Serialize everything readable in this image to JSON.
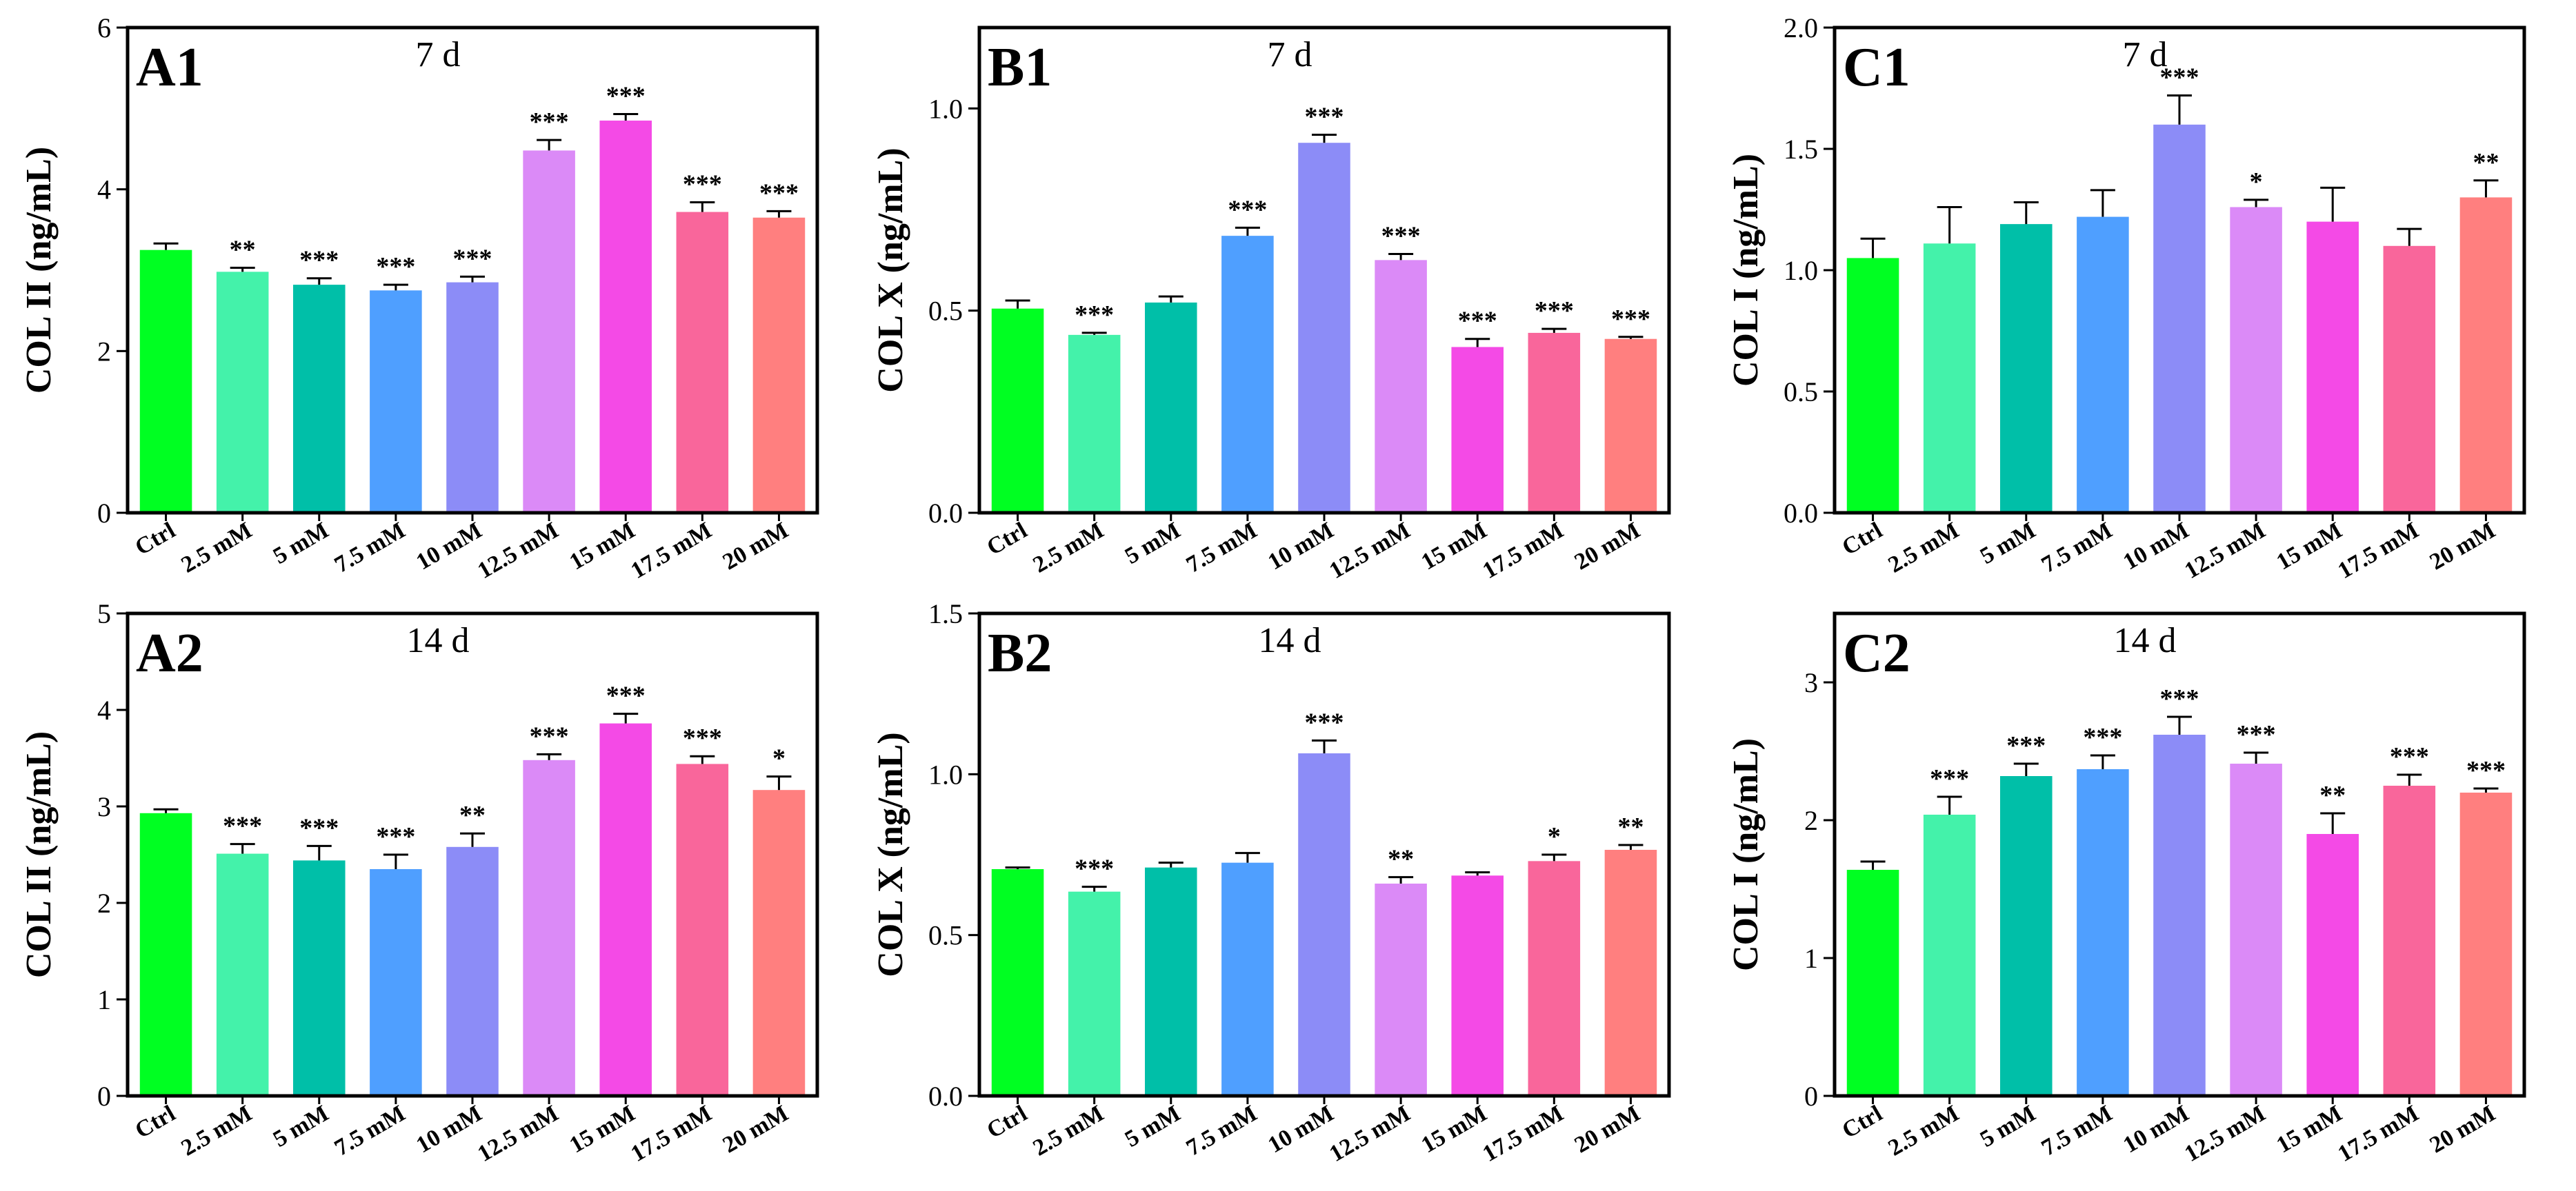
{
  "figure": {
    "description_colors": {
      "axis": "#000000",
      "errorbar": "#000000"
    }
  },
  "colors": [
    "#00FF22",
    "#44F2AA",
    "#00BFA8",
    "#4F9FFF",
    "#8C8CF7",
    "#DB8AF7",
    "#F44AE6",
    "#F9669B",
    "#FF7F7F"
  ],
  "chart_data": [
    {
      "id": "A1",
      "type": "bar",
      "title": "7 d",
      "ylabel": "COL II (ng/mL)",
      "categories": [
        "Ctrl",
        "2.5 mM",
        "5 mM",
        "7.5 mM",
        "10 mM",
        "12.5 mM",
        "15 mM",
        "17.5 mM",
        "20 mM"
      ],
      "values": [
        3.25,
        2.98,
        2.82,
        2.75,
        2.85,
        4.48,
        4.85,
        3.72,
        3.65
      ],
      "errors": [
        0.08,
        0.05,
        0.08,
        0.07,
        0.07,
        0.13,
        0.08,
        0.12,
        0.08
      ],
      "significance": [
        "",
        "**",
        "***",
        "***",
        "***",
        "***",
        "***",
        "***",
        "***"
      ],
      "ylim": [
        0,
        6
      ],
      "yticks": [
        0,
        2,
        4,
        6
      ],
      "ytick_labels": [
        "0",
        "2",
        "4",
        "6"
      ]
    },
    {
      "id": "B1",
      "type": "bar",
      "title": "7 d",
      "ylabel": "COL X (ng/mL)",
      "categories": [
        "Ctrl",
        "2.5 mM",
        "5 mM",
        "7.5 mM",
        "10 mM",
        "12.5 mM",
        "15 mM",
        "17.5 mM",
        "20 mM"
      ],
      "values": [
        0.505,
        0.44,
        0.52,
        0.685,
        0.915,
        0.625,
        0.41,
        0.445,
        0.43
      ],
      "errors": [
        0.02,
        0.005,
        0.015,
        0.02,
        0.02,
        0.015,
        0.02,
        0.01,
        0.005
      ],
      "significance": [
        "",
        "***",
        "",
        "***",
        "***",
        "***",
        "***",
        "***",
        "***"
      ],
      "ylim": [
        0,
        1.2
      ],
      "yticks": [
        0,
        0.5,
        1.0
      ],
      "ytick_labels": [
        "0.0",
        "0.5",
        "1.0"
      ]
    },
    {
      "id": "C1",
      "type": "bar",
      "title": "7 d",
      "ylabel": "COL I (ng/mL)",
      "categories": [
        "Ctrl",
        "2.5 mM",
        "5 mM",
        "7.5 mM",
        "10 mM",
        "12.5 mM",
        "15 mM",
        "17.5 mM",
        "20 mM"
      ],
      "values": [
        1.05,
        1.11,
        1.19,
        1.22,
        1.6,
        1.26,
        1.2,
        1.1,
        1.3
      ],
      "errors": [
        0.08,
        0.15,
        0.09,
        0.11,
        0.12,
        0.03,
        0.14,
        0.07,
        0.07
      ],
      "significance": [
        "",
        "",
        "",
        "",
        "***",
        "*",
        "",
        "",
        "**"
      ],
      "ylim": [
        0,
        2.0
      ],
      "yticks": [
        0,
        0.5,
        1.0,
        1.5,
        2.0
      ],
      "ytick_labels": [
        "0.0",
        "0.5",
        "1.0",
        "1.5",
        "2.0"
      ]
    },
    {
      "id": "A2",
      "type": "bar",
      "title": "14 d",
      "ylabel": "COL II (ng/mL)",
      "categories": [
        "Ctrl",
        "2.5 mM",
        "5 mM",
        "7.5 mM",
        "10 mM",
        "12.5 mM",
        "15 mM",
        "17.5 mM",
        "20 mM"
      ],
      "values": [
        2.93,
        2.51,
        2.44,
        2.35,
        2.58,
        3.48,
        3.86,
        3.44,
        3.17
      ],
      "errors": [
        0.04,
        0.1,
        0.15,
        0.15,
        0.14,
        0.06,
        0.1,
        0.08,
        0.14
      ],
      "significance": [
        "",
        "***",
        "***",
        "***",
        "**",
        "***",
        "***",
        "***",
        "*"
      ],
      "ylim": [
        0,
        5
      ],
      "yticks": [
        0,
        1,
        2,
        3,
        4,
        5
      ],
      "ytick_labels": [
        "0",
        "1",
        "2",
        "3",
        "4",
        "5"
      ]
    },
    {
      "id": "B2",
      "type": "bar",
      "title": "14 d",
      "ylabel": "COL X (ng/mL)",
      "categories": [
        "Ctrl",
        "2.5 mM",
        "5 mM",
        "7.5 mM",
        "10 mM",
        "12.5 mM",
        "15 mM",
        "17.5 mM",
        "20 mM"
      ],
      "values": [
        0.705,
        0.635,
        0.71,
        0.725,
        1.065,
        0.66,
        0.685,
        0.73,
        0.765
      ],
      "errors": [
        0.005,
        0.015,
        0.015,
        0.03,
        0.04,
        0.02,
        0.01,
        0.02,
        0.015
      ],
      "significance": [
        "",
        "***",
        "",
        "",
        "***",
        "**",
        "",
        "*",
        "**"
      ],
      "ylim": [
        0,
        1.5
      ],
      "yticks": [
        0,
        0.5,
        1.0,
        1.5
      ],
      "ytick_labels": [
        "0.0",
        "0.5",
        "1.0",
        "1.5"
      ]
    },
    {
      "id": "C2",
      "type": "bar",
      "title": "14 d",
      "ylabel": "COL I (ng/mL)",
      "categories": [
        "Ctrl",
        "2.5 mM",
        "5 mM",
        "7.5 mM",
        "10 mM",
        "12.5 mM",
        "15 mM",
        "17.5 mM",
        "20 mM"
      ],
      "values": [
        1.64,
        2.04,
        2.32,
        2.37,
        2.62,
        2.41,
        1.9,
        2.25,
        2.2
      ],
      "errors": [
        0.06,
        0.13,
        0.09,
        0.1,
        0.13,
        0.08,
        0.15,
        0.08,
        0.03
      ],
      "significance": [
        "",
        "***",
        "***",
        "***",
        "***",
        "***",
        "**",
        "***",
        "***"
      ],
      "ylim": [
        0,
        3.5
      ],
      "yticks": [
        0,
        1,
        2,
        3
      ],
      "ytick_labels": [
        "0",
        "1",
        "2",
        "3"
      ]
    }
  ]
}
